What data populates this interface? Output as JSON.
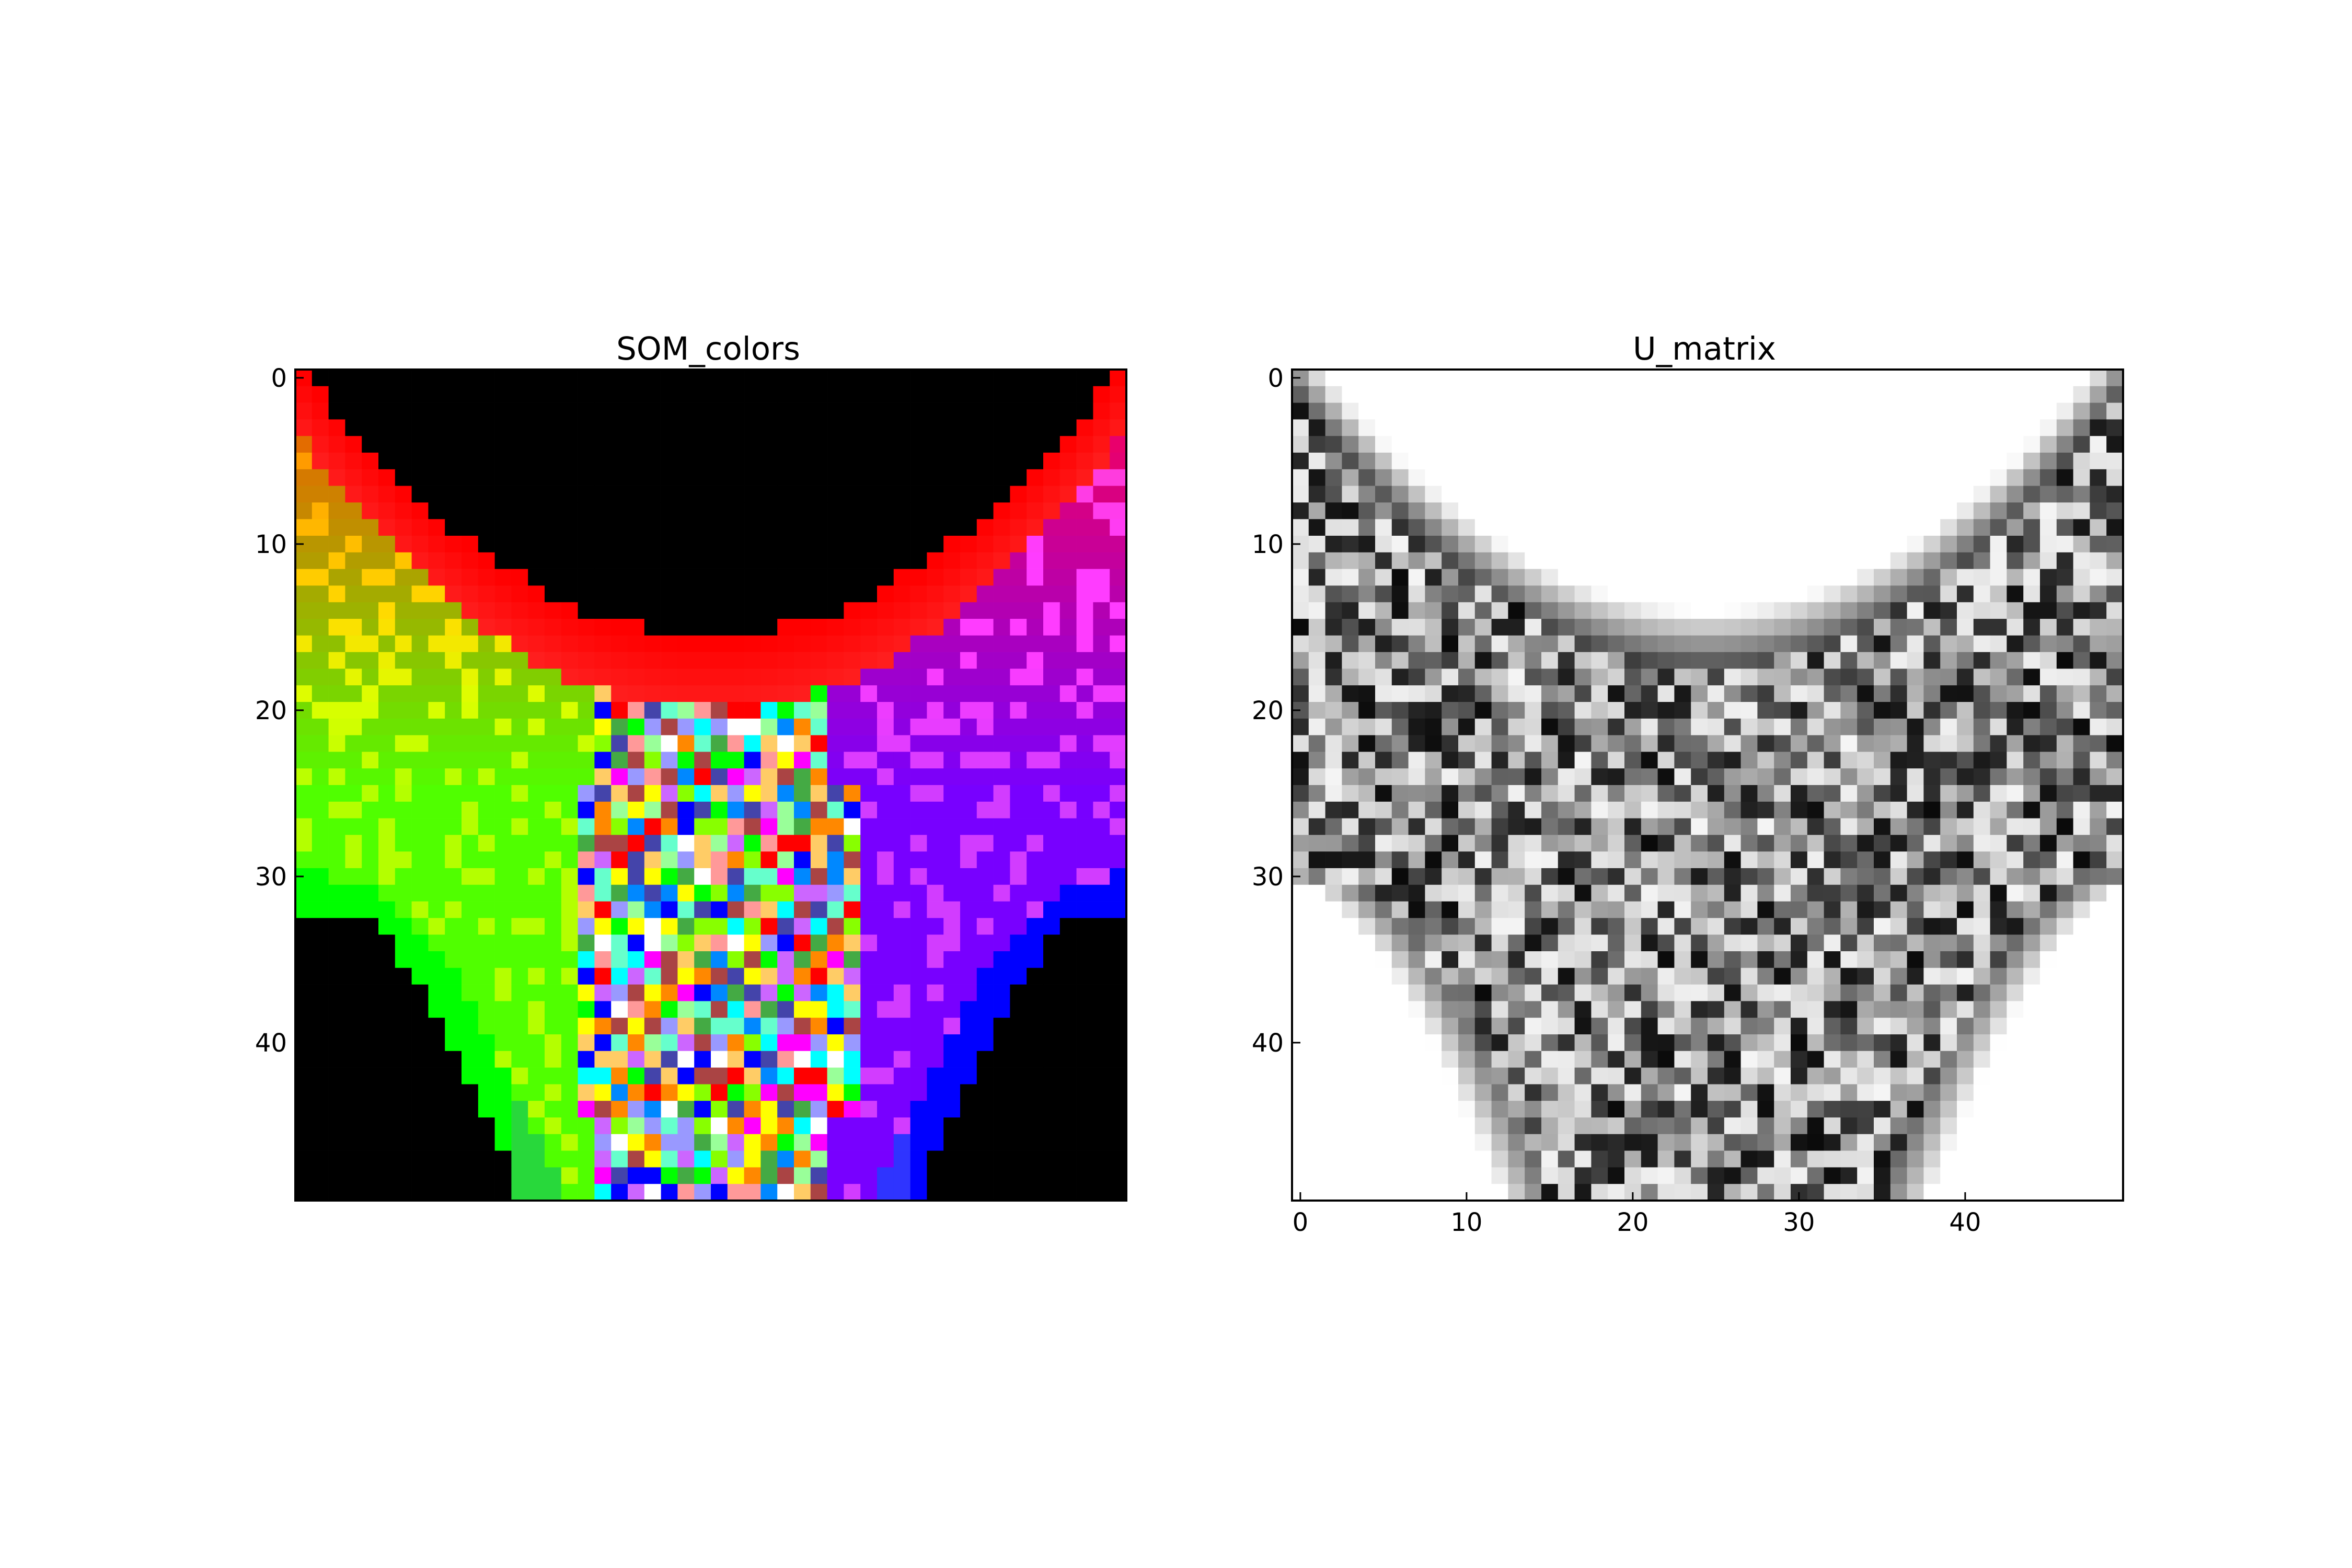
{
  "chart_data": [
    {
      "type": "heatmap",
      "title": "SOM_colors",
      "grid_size": [
        50,
        50
      ],
      "colormap": "rgb",
      "xlim": [
        -0.5,
        49.5
      ],
      "ylim": [
        49.5,
        -0.5
      ],
      "x_ticks": [],
      "y_ticks": [
        0,
        10,
        20,
        30,
        40
      ],
      "grid": false,
      "regions": [
        {
          "region": "top-center-void",
          "color": "#000000"
        },
        {
          "region": "upper-arc-band",
          "color": "#ff0000"
        },
        {
          "region": "lower-left-band",
          "color": "#00ff00"
        },
        {
          "region": "lower-right-band",
          "color": "#0000ff"
        },
        {
          "region": "bottom-left-void",
          "color": "#000000"
        },
        {
          "region": "bottom-right-void",
          "color": "#000000"
        },
        {
          "region": "center-mixed",
          "color": "mixed"
        }
      ]
    },
    {
      "type": "heatmap",
      "title": "U_matrix",
      "grid_size": [
        50,
        50
      ],
      "colormap": "gray",
      "xlim": [
        -0.5,
        49.5
      ],
      "ylim": [
        49.5,
        -0.5
      ],
      "x_ticks": [
        0,
        10,
        20,
        30,
        40
      ],
      "y_ticks": [
        0,
        10,
        20,
        30,
        40
      ],
      "grid": false,
      "regions": [
        {
          "region": "top-center",
          "color": "#ffffff"
        },
        {
          "region": "bottom-left",
          "color": "#ffffff"
        },
        {
          "region": "bottom-right",
          "color": "#ffffff"
        },
        {
          "region": "center-mixed",
          "color": "mixed"
        }
      ]
    }
  ]
}
